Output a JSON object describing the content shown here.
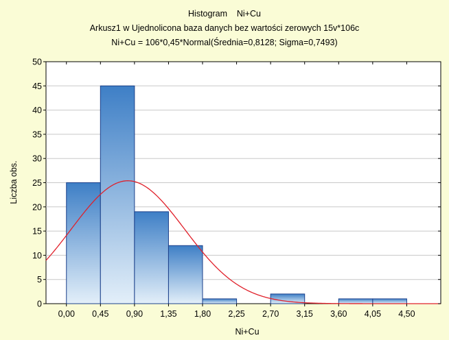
{
  "chart_data": {
    "type": "bar",
    "title": "Histogram    Ni+Cu",
    "subtitle_1": "Arkusz1 w Ujednolicona baza danych bez wartości zerowych 15v*106c",
    "subtitle_2": "Ni+Cu = 106*0,45*Normal(Średnia=0,8128; Sigma=0,7493)",
    "xlabel": "Ni+Cu",
    "ylabel": "Liczba obs.",
    "x_ticks": [
      "0,00",
      "0,45",
      "0,90",
      "1,35",
      "1,80",
      "2,25",
      "2,70",
      "3,15",
      "3,60",
      "4,05",
      "4,50"
    ],
    "y_ticks": [
      "0",
      "5",
      "10",
      "15",
      "20",
      "25",
      "30",
      "35",
      "40",
      "45",
      "50"
    ],
    "xlim": [
      -0.27,
      4.95
    ],
    "ylim": [
      0,
      50
    ],
    "bin_width": 0.45,
    "bins": [
      {
        "start": 0.0,
        "end": 0.45,
        "count": 25
      },
      {
        "start": 0.45,
        "end": 0.9,
        "count": 45
      },
      {
        "start": 0.9,
        "end": 1.35,
        "count": 19
      },
      {
        "start": 1.35,
        "end": 1.8,
        "count": 12
      },
      {
        "start": 1.8,
        "end": 2.25,
        "count": 1
      },
      {
        "start": 2.25,
        "end": 2.7,
        "count": 0
      },
      {
        "start": 2.7,
        "end": 3.15,
        "count": 2
      },
      {
        "start": 3.15,
        "end": 3.6,
        "count": 0
      },
      {
        "start": 3.6,
        "end": 4.05,
        "count": 1
      },
      {
        "start": 4.05,
        "end": 4.5,
        "count": 1
      }
    ],
    "normal_fit": {
      "n": 106,
      "mean": 0.8128,
      "sigma": 0.7493
    },
    "grid": true,
    "colors": {
      "background": "#fafcd6",
      "plot_background": "#ffffff",
      "bar_top": "#3e7fc6",
      "bar_bottom": "#e3eff9",
      "bar_border": "#1a3f8a",
      "fit_line": "#e0202a",
      "grid": "#c8c8c8"
    }
  }
}
